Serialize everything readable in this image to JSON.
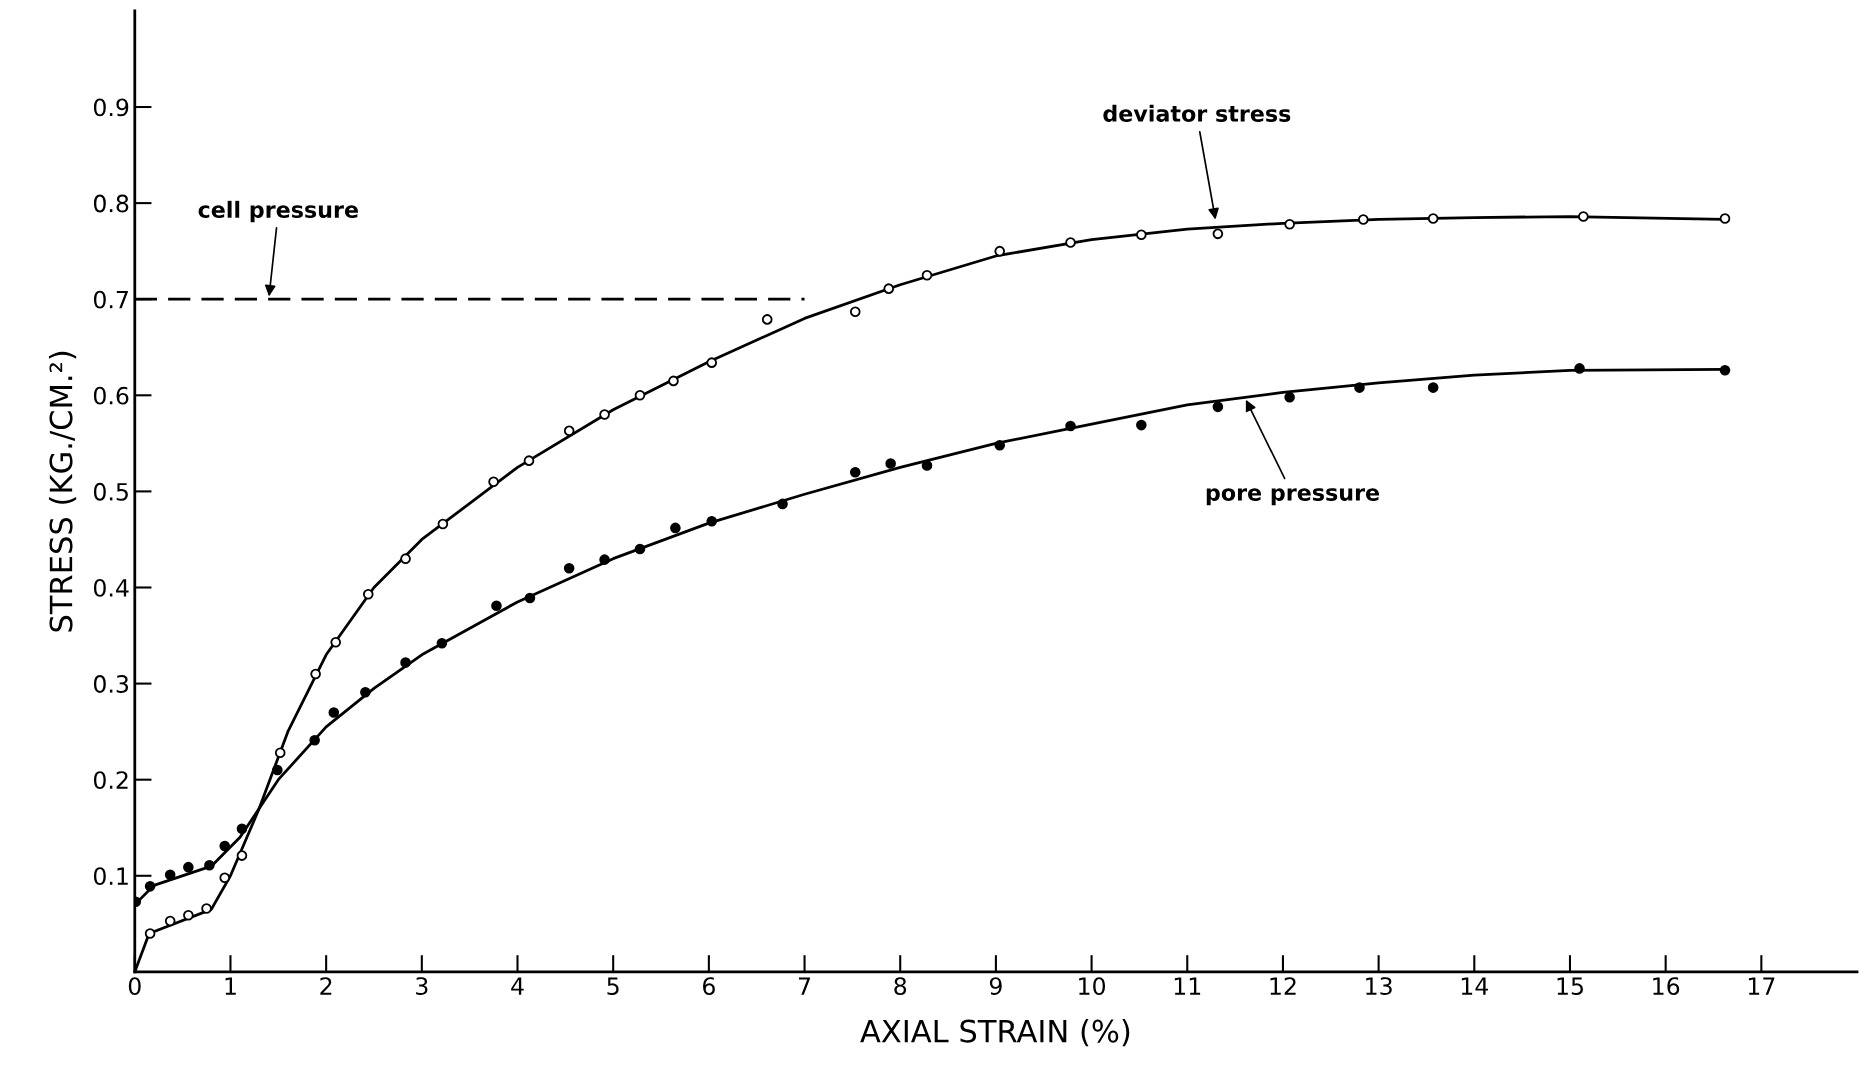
{
  "chart_data": {
    "type": "scatter",
    "xlabel": "AXIAL STRAIN (%)",
    "ylabel": "STRESS (KG./CM.²)",
    "xlim": [
      0,
      18
    ],
    "ylim": [
      0,
      1.0
    ],
    "xticks": [
      0,
      1,
      2,
      3,
      4,
      5,
      6,
      7,
      8,
      9,
      10,
      11,
      12,
      13,
      14,
      15,
      16,
      17
    ],
    "yticks": [
      0.1,
      0.2,
      0.3,
      0.4,
      0.5,
      0.6,
      0.7,
      0.8,
      0.9
    ],
    "grid": false,
    "legend": false,
    "series": [
      {
        "color": "#000000",
        "marker": "circle",
        "x": [
          0.16,
          0.37,
          0.56,
          0.75,
          0.94,
          1.12,
          1.52,
          1.89,
          2.1,
          2.44,
          2.83,
          3.22,
          3.75,
          4.12,
          4.54,
          4.91,
          5.28,
          5.63,
          6.03,
          6.61,
          7.53,
          7.88,
          8.28,
          9.04,
          9.78,
          10.52,
          11.32,
          12.07,
          12.84,
          13.57,
          15.14,
          16.62
        ],
        "values": [
          0.04,
          0.053,
          0.059,
          0.066,
          0.098,
          0.121,
          0.228,
          0.31,
          0.343,
          0.393,
          0.43,
          0.466,
          0.51,
          0.532,
          0.563,
          0.58,
          0.6,
          0.615,
          0.634,
          0.679,
          0.687,
          0.711,
          0.725,
          0.75,
          0.759,
          0.767,
          0.768,
          0.778,
          0.783,
          0.784,
          0.786,
          0.784
        ]
      },
      {
        "color": "#000000",
        "marker": "circle",
        "x": [
          0.01,
          0.16,
          0.37,
          0.56,
          0.78,
          0.94,
          1.12,
          1.49,
          1.88,
          2.08,
          2.41,
          2.83,
          3.21,
          3.78,
          4.13,
          4.54,
          4.91,
          5.28,
          5.65,
          6.03,
          6.77,
          7.53,
          7.9,
          8.28,
          9.04,
          9.78,
          10.52,
          11.32,
          12.07,
          12.8,
          13.57,
          15.1,
          16.62
        ],
        "values": [
          0.073,
          0.089,
          0.101,
          0.109,
          0.111,
          0.131,
          0.149,
          0.21,
          0.241,
          0.27,
          0.291,
          0.322,
          0.342,
          0.381,
          0.389,
          0.42,
          0.429,
          0.44,
          0.462,
          0.469,
          0.487,
          0.52,
          0.529,
          0.527,
          0.548,
          0.568,
          0.569,
          0.588,
          0.598,
          0.608,
          0.608,
          0.628,
          0.626
        ]
      },
      {
        "type": "line",
        "color": "#000000",
        "line_style": "solid",
        "x": [
          0,
          0.15,
          0.8,
          1.0,
          1.3,
          1.6,
          2,
          2.5,
          3,
          4,
          5,
          6,
          7,
          8,
          9,
          10,
          11,
          12,
          13,
          14,
          15,
          16.6
        ],
        "values": [
          0,
          0.04,
          0.065,
          0.1,
          0.17,
          0.25,
          0.33,
          0.4,
          0.45,
          0.525,
          0.585,
          0.635,
          0.68,
          0.715,
          0.745,
          0.762,
          0.773,
          0.779,
          0.783,
          0.785,
          0.786,
          0.783
        ]
      },
      {
        "type": "line",
        "color": "#000000",
        "line_style": "solid",
        "x": [
          0,
          0.2,
          0.8,
          1.1,
          1.5,
          2,
          2.5,
          3,
          4,
          5,
          6,
          7,
          8,
          9,
          10,
          11,
          12,
          13,
          14,
          15,
          16.6
        ],
        "values": [
          0.07,
          0.09,
          0.11,
          0.14,
          0.2,
          0.255,
          0.295,
          0.33,
          0.385,
          0.43,
          0.467,
          0.497,
          0.525,
          0.55,
          0.57,
          0.59,
          0.603,
          0.613,
          0.621,
          0.626,
          0.627
        ]
      },
      {
        "type": "line",
        "color": "#000000",
        "line_style": "dashed",
        "x": [
          0,
          7
        ],
        "values": [
          0.7,
          0.7
        ]
      }
    ],
    "annotations": [
      {
        "text": "deviator stress",
        "x": 11.3,
        "y": 0.78
      },
      {
        "text": "cell pressure",
        "x": 1.4,
        "y": 0.7
      },
      {
        "text": "pore pressure",
        "x": 11.6,
        "y": 0.598
      }
    ]
  }
}
